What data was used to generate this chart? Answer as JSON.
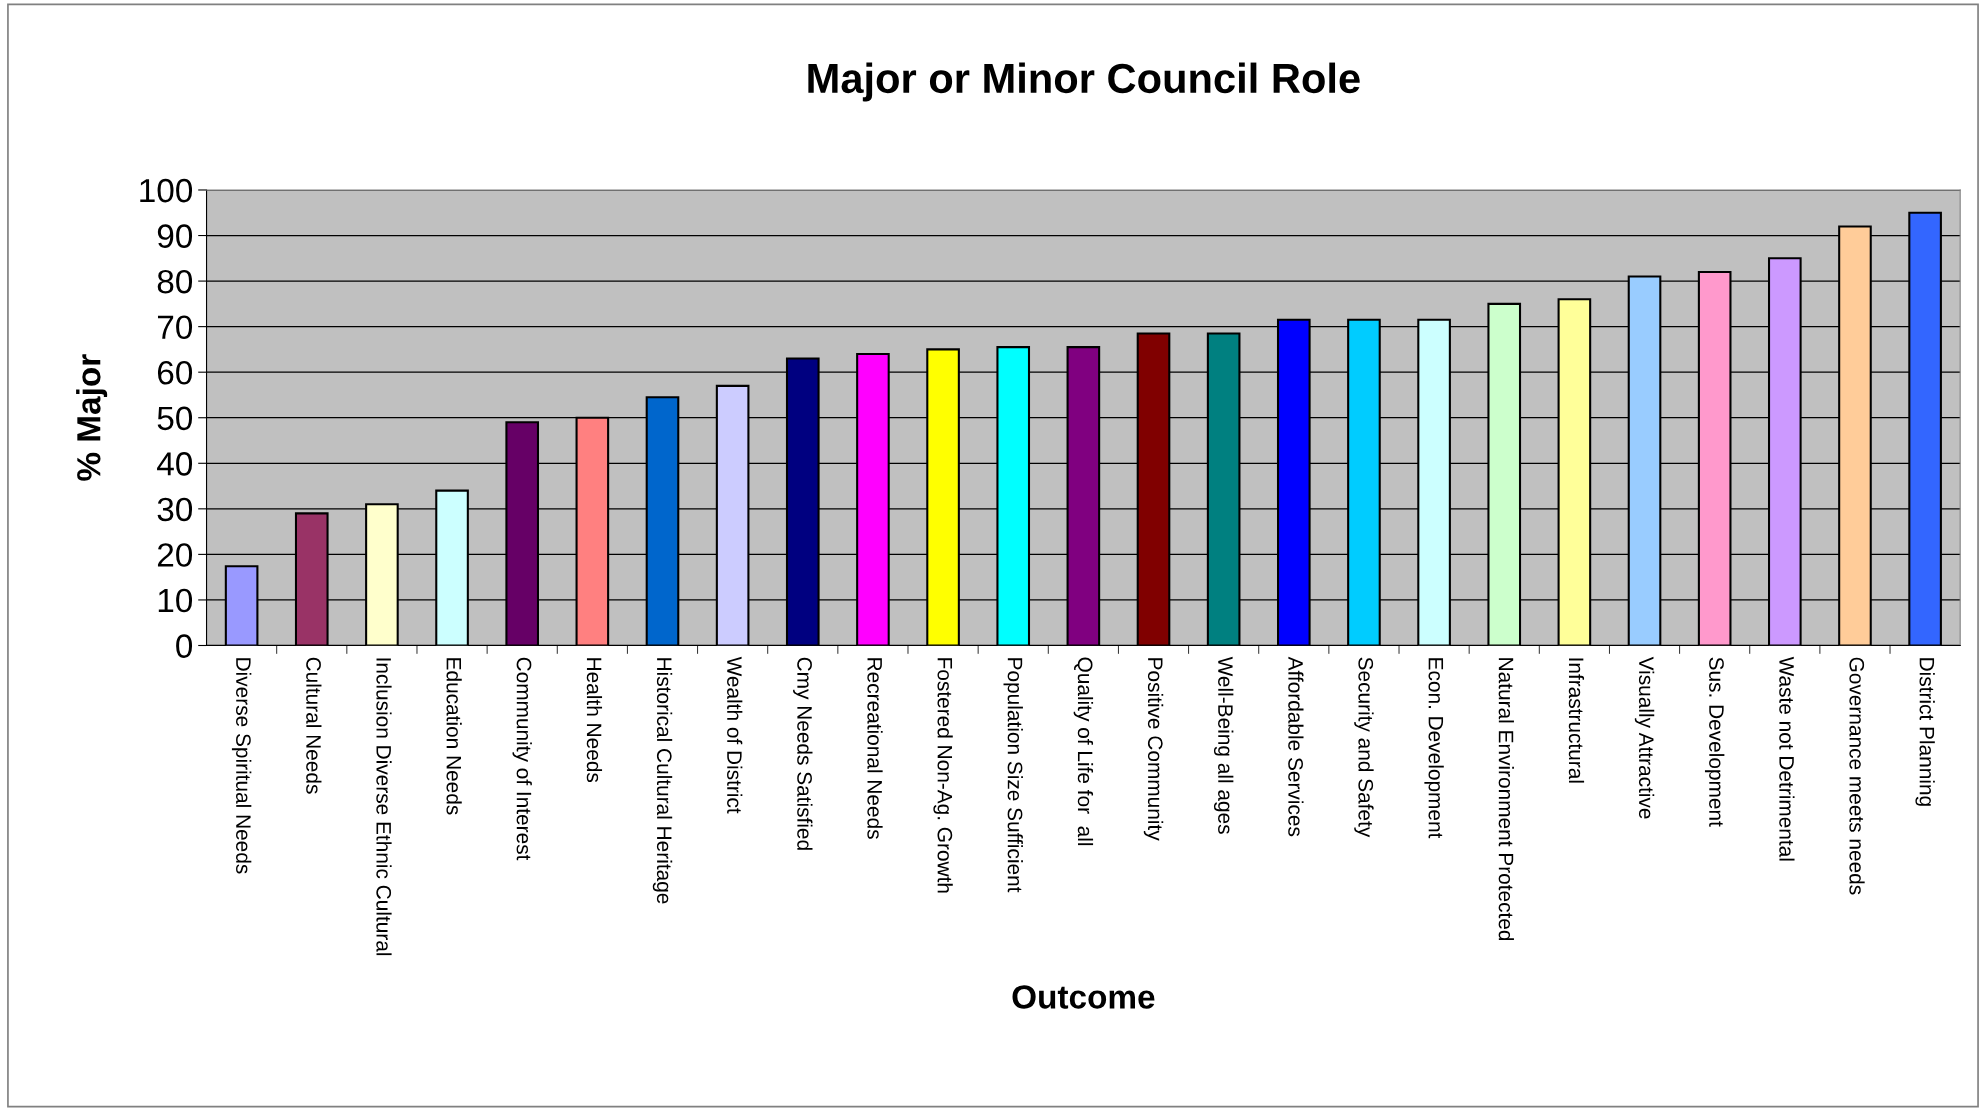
{
  "chart_data": {
    "type": "bar",
    "title": "Major or Minor Council Role",
    "xlabel": "Outcome",
    "ylabel": "% Major",
    "categories": [
      "Diverse Spiritual Needs",
      "Cultural Needs",
      "Inclusion Diverse Ethnic Cultural",
      "Education Needs",
      "Community of Interest",
      "Health Needs",
      "Historical Cultural Heritage",
      "Wealth of District",
      "Cmy Needs Satisfied",
      "Recreational Needs",
      "Fostered Non-Ag. Growth",
      "Population Size Sufficient",
      "Quality of Life for  all",
      "Positive Community",
      "Well-Being all ages",
      "Affordable Services",
      "Security and Safety",
      "Econ. Development",
      "Natural Environment Protected",
      "Infrastructural",
      "Visually Attractive",
      "Sus. Development",
      "Waste not Detrimental",
      "Governance meets needs",
      "District Planning"
    ],
    "values": [
      17.4,
      29,
      31,
      34,
      49,
      50,
      54.5,
      57,
      63,
      64,
      65,
      65.5,
      65.5,
      68.5,
      68.5,
      71.5,
      71.5,
      71.5,
      75,
      76,
      81,
      82,
      85,
      92,
      95
    ],
    "colors": [
      "#9999ff",
      "#993366",
      "#ffffcc",
      "#ccffff",
      "#660066",
      "#ff8080",
      "#0066cc",
      "#ccccff",
      "#000080",
      "#ff00ff",
      "#ffff00",
      "#00ffff",
      "#800080",
      "#800000",
      "#008080",
      "#0000ff",
      "#00ccff",
      "#ccffff",
      "#ccffcc",
      "#ffff99",
      "#99ccff",
      "#ff99cc",
      "#cc99ff",
      "#ffcc99",
      "#3366ff"
    ],
    "ylim": [
      0,
      100
    ],
    "yticks": [
      0,
      10,
      20,
      30,
      40,
      50,
      60,
      70,
      80,
      90,
      100
    ],
    "grid": "y"
  }
}
